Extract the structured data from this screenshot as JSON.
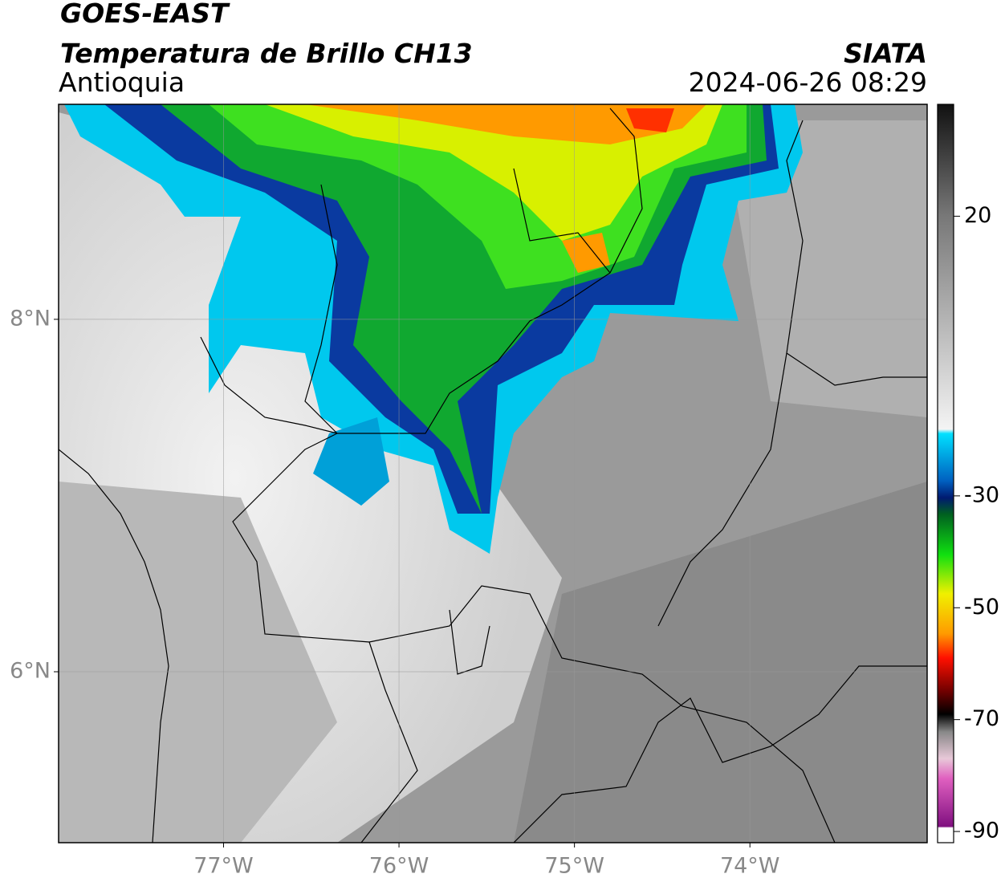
{
  "header": {
    "satellite": "GOES-EAST",
    "product": "Temperatura de Brillo CH13",
    "region": "Antioquia",
    "source": "SIATA",
    "datetime": "2024-06-26 08:29"
  },
  "chart_data": {
    "type": "map",
    "xlim": [
      -77.94,
      -72.99
    ],
    "ylim": [
      5.03,
      9.22
    ],
    "xticks": [
      {
        "value": -77,
        "label": "77°W"
      },
      {
        "value": -76,
        "label": "76°W"
      },
      {
        "value": -75,
        "label": "75°W"
      },
      {
        "value": -74,
        "label": "74°W"
      }
    ],
    "yticks": [
      {
        "value": 6,
        "label": "6°N"
      },
      {
        "value": 8,
        "label": "8°N"
      }
    ],
    "grid": true,
    "colorbar": {
      "lim": [
        -92,
        40
      ],
      "ticks": [
        20,
        -30,
        -50,
        -70,
        -90
      ]
    }
  }
}
